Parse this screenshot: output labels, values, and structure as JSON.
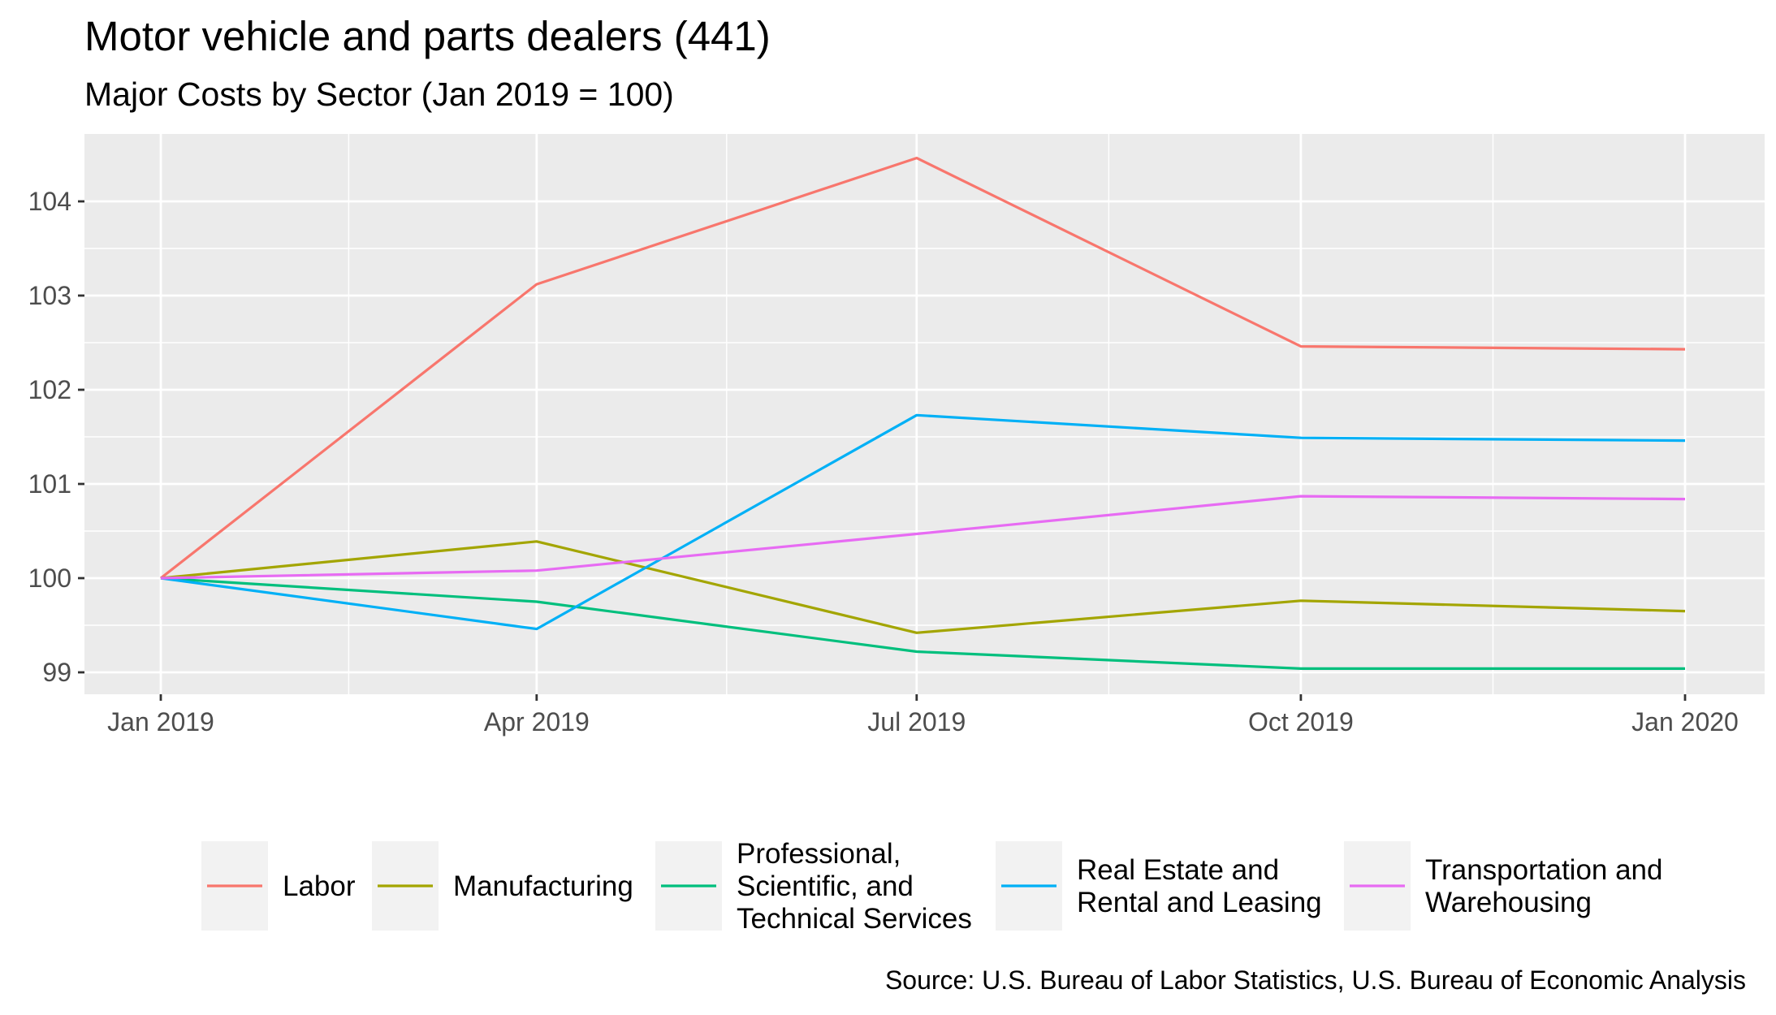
{
  "chart_data": {
    "type": "line",
    "title": "Motor vehicle and parts dealers (441)",
    "subtitle": "Major Costs by Sector (Jan 2019 = 100)",
    "xlabel": "",
    "ylabel": "",
    "categories": [
      "Jan 2019",
      "Apr 2019",
      "Jul 2019",
      "Oct 2019",
      "Jan 2020"
    ],
    "x_positions": [
      0,
      90,
      181,
      273,
      365
    ],
    "y_ticks": [
      99,
      100,
      101,
      102,
      103,
      104
    ],
    "ylim": [
      98.8,
      104.6
    ],
    "grid": true,
    "legend_position": "bottom",
    "series": [
      {
        "name": "Labor",
        "color": "#F8766D",
        "legend_lines": [
          "Labor"
        ],
        "values": [
          100,
          103.12,
          104.46,
          102.46,
          102.43
        ]
      },
      {
        "name": "Manufacturing",
        "color": "#A3A500",
        "legend_lines": [
          "Manufacturing"
        ],
        "values": [
          100,
          100.39,
          99.42,
          99.76,
          99.65
        ]
      },
      {
        "name": "Professional, Scientific, and Technical Services",
        "color": "#00BF7D",
        "legend_lines": [
          "Professional,",
          "Scientific, and",
          "Technical Services"
        ],
        "values": [
          100,
          99.75,
          99.22,
          99.04,
          99.04
        ]
      },
      {
        "name": "Real Estate and Rental and Leasing",
        "color": "#00B0F6",
        "legend_lines": [
          "Real Estate and",
          "Rental and Leasing"
        ],
        "values": [
          100,
          99.46,
          101.73,
          101.49,
          101.46
        ]
      },
      {
        "name": "Transportation and Warehousing",
        "color": "#E76BF3",
        "legend_lines": [
          "Transportation and",
          "Warehousing"
        ],
        "values": [
          100,
          100.08,
          100.47,
          100.87,
          100.84
        ]
      }
    ],
    "caption": "Source: U.S. Bureau of Labor Statistics, U.S. Bureau of Economic Analysis"
  }
}
